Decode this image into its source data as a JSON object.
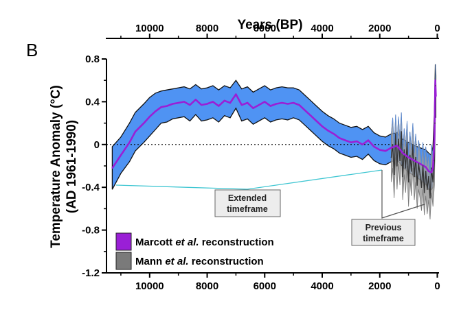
{
  "panel_label": "B",
  "colors": {
    "band": "#4f93f3",
    "marcott": "#9a1fd6",
    "mann": "#7a7a7a",
    "callout_line": "#3fc6d2",
    "callout_box": "#ededed"
  },
  "callouts": {
    "extended": [
      "Extended",
      "timeframe"
    ],
    "previous": [
      "Previous",
      "timeframe"
    ]
  },
  "legend": {
    "marcott": {
      "prefix": "Marcott ",
      "italic": "et al.",
      "suffix": " reconstruction"
    },
    "mann": {
      "prefix": "Mann ",
      "italic": "et al.",
      "suffix": " reconstruction"
    }
  },
  "chart_data": {
    "type": "line",
    "top_axis_title": "Years (BP)",
    "ylabel_lines": [
      "Temperature Anomaly (°C)",
      "(AD 1961-1990)"
    ],
    "xlim": [
      11500,
      -60
    ],
    "ylim": [
      -1.2,
      0.8
    ],
    "x_reversed": true,
    "x_ticks": [
      10000,
      8000,
      6000,
      4000,
      2000,
      0
    ],
    "y_ticks": [
      -1.2,
      -0.8,
      -0.4,
      0,
      0.4,
      0.8
    ],
    "y_tick_labels": [
      "-1.2",
      "-0.8",
      "-0.4",
      "0",
      "0.4",
      "0.8"
    ],
    "zero_line": "dotted",
    "series": [
      {
        "name": "Marcott et al. reconstruction",
        "kind": "mean-with-uncertainty-band",
        "x": [
          11300,
          11000,
          10700,
          10500,
          10200,
          10000,
          9800,
          9600,
          9400,
          9200,
          9000,
          8800,
          8600,
          8400,
          8200,
          8000,
          7800,
          7600,
          7400,
          7200,
          7000,
          6800,
          6600,
          6400,
          6200,
          6000,
          5800,
          5600,
          5400,
          5200,
          5000,
          4800,
          4600,
          4400,
          4200,
          4000,
          3800,
          3600,
          3400,
          3200,
          3000,
          2800,
          2600,
          2400,
          2200,
          2000,
          1800,
          1600,
          1400,
          1200,
          1000,
          800,
          600,
          400,
          300,
          200,
          150,
          100,
          70,
          50
        ],
        "y": [
          -0.22,
          -0.1,
          0.02,
          0.12,
          0.2,
          0.26,
          0.31,
          0.35,
          0.36,
          0.38,
          0.39,
          0.4,
          0.37,
          0.42,
          0.37,
          0.38,
          0.4,
          0.36,
          0.41,
          0.39,
          0.47,
          0.37,
          0.39,
          0.34,
          0.37,
          0.4,
          0.36,
          0.38,
          0.39,
          0.38,
          0.39,
          0.37,
          0.32,
          0.27,
          0.22,
          0.17,
          0.13,
          0.1,
          0.06,
          0.04,
          0.02,
          0.03,
          0.0,
          0.04,
          -0.02,
          -0.05,
          -0.06,
          -0.03,
          -0.01,
          -0.08,
          -0.12,
          -0.15,
          -0.18,
          -0.21,
          -0.25,
          -0.26,
          -0.22,
          0.04,
          0.6,
          0.45
        ],
        "upper": [
          -0.02,
          0.07,
          0.2,
          0.3,
          0.38,
          0.44,
          0.48,
          0.5,
          0.51,
          0.52,
          0.53,
          0.54,
          0.52,
          0.56,
          0.52,
          0.53,
          0.55,
          0.51,
          0.55,
          0.53,
          0.6,
          0.52,
          0.54,
          0.49,
          0.52,
          0.55,
          0.51,
          0.53,
          0.54,
          0.53,
          0.53,
          0.51,
          0.46,
          0.41,
          0.36,
          0.31,
          0.27,
          0.24,
          0.2,
          0.18,
          0.16,
          0.17,
          0.14,
          0.17,
          0.11,
          0.08,
          0.07,
          0.1,
          0.11,
          0.05,
          0.02,
          -0.01,
          -0.03,
          -0.05,
          -0.08,
          -0.1,
          -0.02,
          0.3,
          0.75,
          0.65
        ],
        "lower": [
          -0.42,
          -0.27,
          -0.16,
          -0.06,
          0.02,
          0.08,
          0.14,
          0.2,
          0.21,
          0.24,
          0.25,
          0.26,
          0.22,
          0.28,
          0.22,
          0.23,
          0.25,
          0.21,
          0.27,
          0.25,
          0.34,
          0.22,
          0.24,
          0.19,
          0.22,
          0.25,
          0.21,
          0.23,
          0.24,
          0.23,
          0.25,
          0.23,
          0.18,
          0.13,
          0.08,
          0.03,
          -0.01,
          -0.04,
          -0.08,
          -0.1,
          -0.12,
          -0.11,
          -0.14,
          -0.09,
          -0.15,
          -0.18,
          -0.19,
          -0.16,
          -0.14,
          -0.21,
          -0.26,
          -0.29,
          -0.33,
          -0.37,
          -0.42,
          -0.42,
          -0.4,
          -0.22,
          0.45,
          0.25
        ]
      },
      {
        "name": "Mann et al. reconstruction",
        "kind": "noisy-line",
        "x": [
          1600,
          1550,
          1500,
          1450,
          1400,
          1350,
          1300,
          1250,
          1200,
          1150,
          1100,
          1050,
          1000,
          950,
          900,
          850,
          800,
          750,
          700,
          650,
          600,
          550,
          500,
          450,
          400,
          350,
          300,
          250,
          200,
          150,
          100,
          80,
          60
        ],
        "y": [
          -0.12,
          0.0,
          -0.28,
          0.1,
          -0.2,
          0.05,
          -0.15,
          0.12,
          -0.3,
          -0.05,
          -0.22,
          0.02,
          -0.35,
          -0.1,
          -0.25,
          0.0,
          -0.3,
          -0.12,
          -0.38,
          -0.18,
          -0.28,
          -0.4,
          -0.2,
          -0.45,
          -0.25,
          -0.42,
          -0.3,
          -0.5,
          -0.22,
          -0.35,
          -0.15,
          0.2,
          0.55
        ],
        "upper": [
          0.1,
          0.25,
          -0.05,
          0.28,
          0.02,
          0.26,
          0.05,
          0.3,
          -0.08,
          0.15,
          -0.02,
          0.22,
          -0.12,
          0.12,
          -0.05,
          0.2,
          -0.08,
          0.1,
          -0.15,
          0.04,
          -0.06,
          -0.18,
          0.02,
          -0.22,
          -0.02,
          -0.2,
          -0.08,
          -0.28,
          0.0,
          -0.12,
          0.1,
          0.42,
          0.75
        ],
        "lower": [
          -0.35,
          -0.22,
          -0.5,
          -0.12,
          -0.42,
          -0.18,
          -0.38,
          -0.08,
          -0.52,
          -0.28,
          -0.45,
          -0.2,
          -0.58,
          -0.32,
          -0.48,
          -0.22,
          -0.52,
          -0.35,
          -0.6,
          -0.42,
          -0.5,
          -0.62,
          -0.42,
          -0.66,
          -0.48,
          -0.65,
          -0.52,
          -0.7,
          -0.45,
          -0.58,
          -0.38,
          -0.05,
          0.3
        ]
      }
    ]
  }
}
